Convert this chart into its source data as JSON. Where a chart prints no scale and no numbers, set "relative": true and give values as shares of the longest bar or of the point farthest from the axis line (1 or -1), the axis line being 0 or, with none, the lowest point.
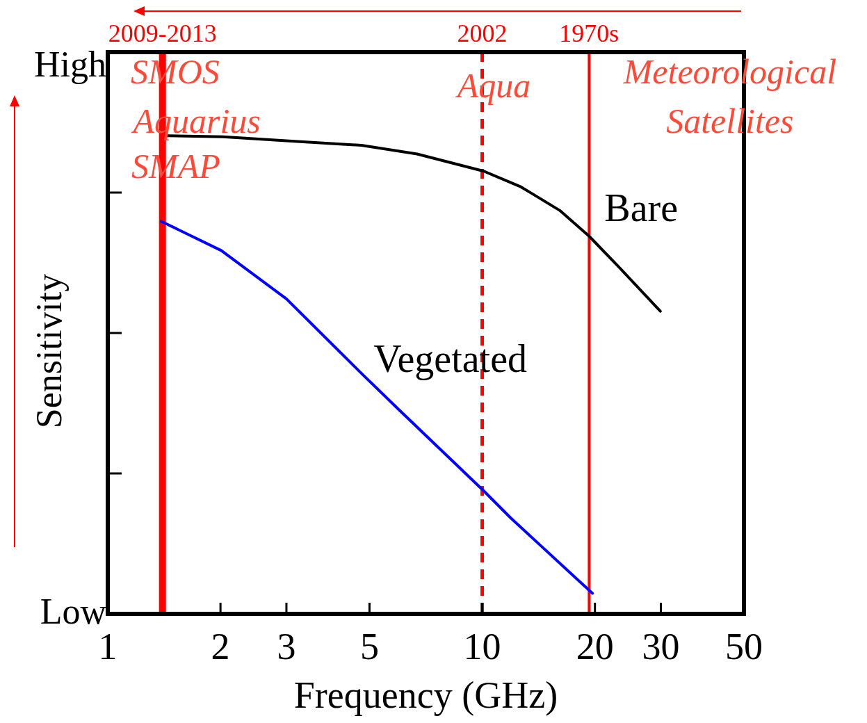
{
  "chart_data": {
    "type": "line",
    "xlabel": "Frequency (GHz)",
    "ylabel": "Sensitivity",
    "log": "x",
    "relative": true,
    "xlim": [
      1,
      50
    ],
    "xticks": [
      1,
      2,
      3,
      5,
      10,
      20,
      30,
      50
    ],
    "grid": false,
    "legend": false,
    "marker": "none",
    "line_style": "solid",
    "series": [
      {
        "name": "Bare",
        "color": "#000000",
        "x": [
          1.44,
          2.03,
          3.1,
          4.76,
          6.7,
          10.1,
          12.7,
          16.1,
          19.3,
          23.2,
          29.9
        ],
        "values": [
          1,
          0.998,
          0.989,
          0.98,
          0.962,
          0.926,
          0.893,
          0.844,
          0.79,
          0.725,
          0.633
        ]
      },
      {
        "name": "Vegetated",
        "color": "#0000ff",
        "x": [
          1.39,
          2.01,
          3.0,
          4.76,
          6.03,
          10.1,
          11.9,
          19.7
        ],
        "values": [
          0.821,
          0.76,
          0.659,
          0.503,
          0.425,
          0.257,
          0.201,
          0.043
        ]
      }
    ],
    "ref_lines": [
      {
        "axis": "x",
        "value": 1.4,
        "color": "#ff0000",
        "line_style": "solid"
      },
      {
        "axis": "x",
        "value": 10,
        "color": "#ff0000",
        "line_style": "dashed"
      },
      {
        "axis": "x",
        "value": 19.3,
        "color": "#ff0000",
        "line_style": "solid"
      }
    ],
    "annotations": [
      "2009-2013",
      "2002",
      "1970s",
      "High",
      "Low",
      "SMOS",
      "Aquarius",
      "SMAP",
      "Aqua",
      "Meteorological",
      "Satellites"
    ]
  }
}
